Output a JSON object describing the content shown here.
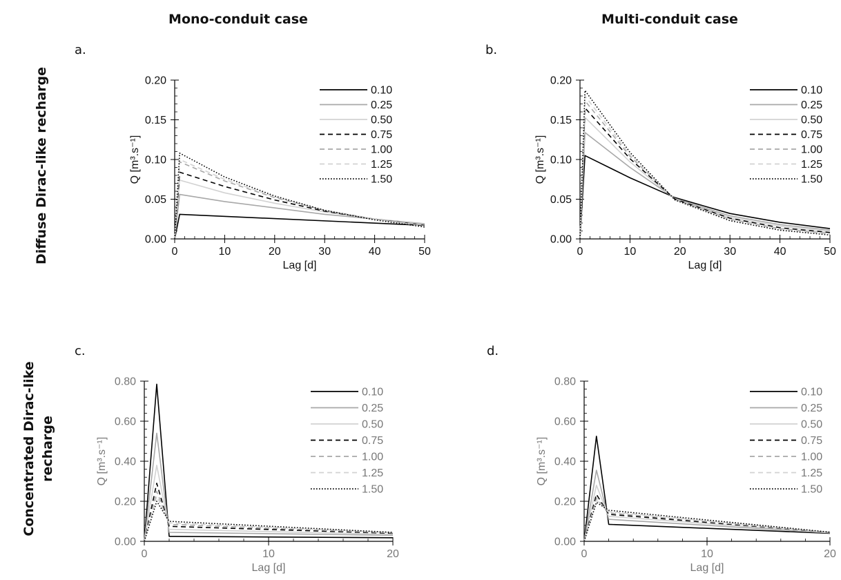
{
  "column_titles": [
    "Mono-conduit case",
    "Multi-conduit case"
  ],
  "row_titles": [
    [
      "Diffuse Dirac-like recharge"
    ],
    [
      "Concentrated Dirac-like",
      "recharge"
    ]
  ],
  "style": {
    "series_colors": [
      "#000000",
      "#a8a8a8",
      "#d2d2d2",
      "#000000",
      "#a8a8a8",
      "#d2d2d2",
      "#000000"
    ],
    "series_dash": [
      "solid",
      "solid",
      "solid",
      "dashed",
      "dashed",
      "dashed",
      "dotted"
    ],
    "muted_text_color": "#777777"
  },
  "chart_data": [
    {
      "panel": "a.",
      "type": "line",
      "xlabel": "Lag [d]",
      "ylabel": "Q [m³.s⁻¹]",
      "xlim": [
        0,
        50
      ],
      "ylim": [
        0,
        0.2
      ],
      "x_ticks": [
        0,
        10,
        20,
        30,
        40,
        50
      ],
      "y_ticks": [
        0.0,
        0.05,
        0.1,
        0.15,
        0.2
      ],
      "x_tick_labels": [
        "0",
        "10",
        "20",
        "30",
        "40",
        "50"
      ],
      "y_tick_labels": [
        "0.00",
        "0.05",
        "0.10",
        "0.15",
        "0.20"
      ],
      "legend": "top-right",
      "muted_text": false,
      "series": [
        {
          "name": "0.10",
          "x": [
            0,
            1,
            50
          ],
          "y": [
            0.0,
            0.031,
            0.017
          ]
        },
        {
          "name": "0.25",
          "x": [
            0,
            1,
            10,
            20,
            30,
            40,
            50
          ],
          "y": [
            0.0,
            0.056,
            0.047,
            0.039,
            0.031,
            0.025,
            0.019
          ]
        },
        {
          "name": "0.50",
          "x": [
            0,
            1,
            10,
            20,
            30,
            40,
            50
          ],
          "y": [
            0.0,
            0.074,
            0.058,
            0.045,
            0.034,
            0.025,
            0.018
          ]
        },
        {
          "name": "0.75",
          "x": [
            0,
            1,
            10,
            20,
            30,
            40,
            50
          ],
          "y": [
            0.0,
            0.084,
            0.066,
            0.049,
            0.035,
            0.025,
            0.017
          ]
        },
        {
          "name": "1.00",
          "x": [
            0,
            1,
            10,
            20,
            30,
            40,
            50
          ],
          "y": [
            0.0,
            0.097,
            0.073,
            0.052,
            0.036,
            0.025,
            0.017
          ]
        },
        {
          "name": "1.25",
          "x": [
            0,
            1,
            10,
            20,
            30,
            40,
            50
          ],
          "y": [
            0.0,
            0.1,
            0.075,
            0.053,
            0.036,
            0.025,
            0.016
          ]
        },
        {
          "name": "1.50",
          "x": [
            0,
            1,
            10,
            20,
            30,
            40,
            50
          ],
          "y": [
            0.0,
            0.108,
            0.078,
            0.054,
            0.036,
            0.024,
            0.015
          ]
        }
      ]
    },
    {
      "panel": "b.",
      "type": "line",
      "xlabel": "Lag [d]",
      "ylabel": "Q [m³.s⁻¹]",
      "xlim": [
        0,
        50
      ],
      "ylim": [
        0,
        0.2
      ],
      "x_ticks": [
        0,
        10,
        20,
        30,
        40,
        50
      ],
      "y_ticks": [
        0.0,
        0.05,
        0.1,
        0.15,
        0.2
      ],
      "x_tick_labels": [
        "0",
        "10",
        "20",
        "30",
        "40",
        "50"
      ],
      "y_tick_labels": [
        "0.00",
        "0.05",
        "0.10",
        "0.15",
        "0.20"
      ],
      "legend": "top-right",
      "muted_text": false,
      "series": [
        {
          "name": "0.10",
          "x": [
            0,
            1,
            10,
            19,
            30,
            40,
            50
          ],
          "y": [
            0.0,
            0.105,
            0.077,
            0.052,
            0.032,
            0.021,
            0.013
          ]
        },
        {
          "name": "0.25",
          "x": [
            0,
            1,
            10,
            19,
            30,
            40,
            50
          ],
          "y": [
            0.0,
            0.134,
            0.09,
            0.051,
            0.029,
            0.018,
            0.011
          ]
        },
        {
          "name": "0.50",
          "x": [
            0,
            1,
            10,
            19,
            30,
            40,
            50
          ],
          "y": [
            0.0,
            0.153,
            0.097,
            0.05,
            0.027,
            0.016,
            0.009
          ]
        },
        {
          "name": "0.75",
          "x": [
            0,
            1,
            10,
            19,
            30,
            40,
            50
          ],
          "y": [
            0.0,
            0.165,
            0.101,
            0.05,
            0.026,
            0.014,
            0.008
          ]
        },
        {
          "name": "1.00",
          "x": [
            0,
            1,
            10,
            19,
            30,
            40,
            50
          ],
          "y": [
            0.0,
            0.174,
            0.104,
            0.05,
            0.025,
            0.013,
            0.007
          ]
        },
        {
          "name": "1.25",
          "x": [
            0,
            1,
            10,
            19,
            30,
            40,
            50
          ],
          "y": [
            0.0,
            0.18,
            0.106,
            0.049,
            0.024,
            0.012,
            0.006
          ]
        },
        {
          "name": "1.50",
          "x": [
            0,
            1,
            10,
            19,
            30,
            40,
            50
          ],
          "y": [
            0.0,
            0.187,
            0.109,
            0.049,
            0.023,
            0.011,
            0.005
          ]
        }
      ]
    },
    {
      "panel": "c.",
      "type": "line",
      "xlabel": "Lag [d]",
      "ylabel": "Q [m³.s⁻¹]",
      "xlim": [
        0,
        20
      ],
      "ylim": [
        0,
        0.8
      ],
      "x_ticks": [
        0,
        10,
        20
      ],
      "y_ticks": [
        0.0,
        0.2,
        0.4,
        0.6,
        0.8
      ],
      "x_tick_labels": [
        "0",
        "10",
        "20"
      ],
      "y_tick_labels": [
        "0.00",
        "0.20",
        "0.40",
        "0.60",
        "0.80"
      ],
      "legend": "top-right",
      "muted_text": true,
      "series": [
        {
          "name": "0.10",
          "x": [
            0,
            1,
            2,
            20
          ],
          "y": [
            0.0,
            0.785,
            0.025,
            0.018
          ]
        },
        {
          "name": "0.25",
          "x": [
            0,
            1,
            2,
            20
          ],
          "y": [
            0.0,
            0.54,
            0.045,
            0.03
          ]
        },
        {
          "name": "0.50",
          "x": [
            0,
            1,
            2,
            20
          ],
          "y": [
            0.0,
            0.38,
            0.06,
            0.035
          ]
        },
        {
          "name": "0.75",
          "x": [
            0,
            1,
            2,
            20
          ],
          "y": [
            0.0,
            0.29,
            0.075,
            0.04
          ]
        },
        {
          "name": "1.00",
          "x": [
            0,
            1,
            2,
            20
          ],
          "y": [
            0.0,
            0.25,
            0.085,
            0.042
          ]
        },
        {
          "name": "1.25",
          "x": [
            0,
            1,
            2,
            20
          ],
          "y": [
            0.0,
            0.225,
            0.092,
            0.043
          ]
        },
        {
          "name": "1.50",
          "x": [
            0,
            1,
            2,
            20
          ],
          "y": [
            0.0,
            0.2,
            0.1,
            0.045
          ]
        }
      ]
    },
    {
      "panel": "d.",
      "type": "line",
      "xlabel": "Lag [d]",
      "ylabel": "Q [m³.s⁻¹]",
      "xlim": [
        0,
        20
      ],
      "ylim": [
        0,
        0.8
      ],
      "x_ticks": [
        0,
        10,
        20
      ],
      "y_ticks": [
        0.0,
        0.2,
        0.4,
        0.6,
        0.8
      ],
      "x_tick_labels": [
        "0",
        "10",
        "20"
      ],
      "y_tick_labels": [
        "0.00",
        "0.20",
        "0.40",
        "0.60",
        "0.80"
      ],
      "legend": "top-right",
      "muted_text": true,
      "series": [
        {
          "name": "0.10",
          "x": [
            0,
            1,
            2,
            20
          ],
          "y": [
            0.0,
            0.525,
            0.085,
            0.04
          ]
        },
        {
          "name": "0.25",
          "x": [
            0,
            1,
            2,
            20
          ],
          "y": [
            0.0,
            0.355,
            0.11,
            0.042
          ]
        },
        {
          "name": "0.50",
          "x": [
            0,
            1,
            2,
            20
          ],
          "y": [
            0.0,
            0.28,
            0.125,
            0.043
          ]
        },
        {
          "name": "0.75",
          "x": [
            0,
            1,
            2,
            20
          ],
          "y": [
            0.0,
            0.235,
            0.135,
            0.044
          ]
        },
        {
          "name": "1.00",
          "x": [
            0,
            1,
            2,
            20
          ],
          "y": [
            0.0,
            0.215,
            0.142,
            0.044
          ]
        },
        {
          "name": "1.25",
          "x": [
            0,
            1,
            2,
            20
          ],
          "y": [
            0.0,
            0.205,
            0.148,
            0.045
          ]
        },
        {
          "name": "1.50",
          "x": [
            0,
            1,
            2,
            20
          ],
          "y": [
            0.0,
            0.195,
            0.155,
            0.046
          ]
        }
      ]
    }
  ]
}
